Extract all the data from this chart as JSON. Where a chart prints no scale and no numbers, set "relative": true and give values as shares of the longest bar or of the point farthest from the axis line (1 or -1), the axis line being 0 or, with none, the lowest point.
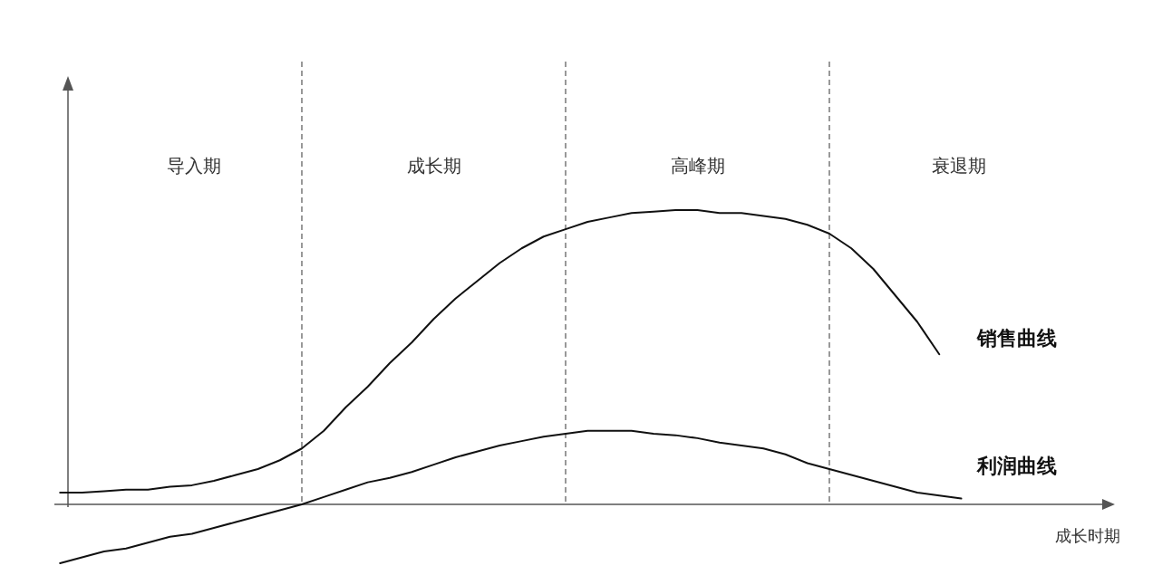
{
  "chart_data": {
    "type": "line",
    "relative": true,
    "grid": "x",
    "marker": "none",
    "line_style": "solid",
    "categories": [
      null,
      null,
      null,
      null,
      null,
      null,
      null,
      null,
      null,
      null,
      null,
      null,
      null,
      null,
      null,
      null,
      null,
      null,
      null,
      null,
      null,
      null,
      null,
      null,
      null,
      null,
      null,
      null,
      null,
      null,
      null,
      null,
      null,
      null,
      null,
      null,
      null,
      null,
      null,
      null,
      null,
      null
    ],
    "series": [
      {
        "name": "销售曲线",
        "color": "#111111",
        "values": [
          0.04,
          0.04,
          0.045,
          0.05,
          0.05,
          0.06,
          0.065,
          0.08,
          0.1,
          0.12,
          0.15,
          0.19,
          0.25,
          0.33,
          0.4,
          0.48,
          0.55,
          0.63,
          0.7,
          0.76,
          0.82,
          0.87,
          0.91,
          0.935,
          0.96,
          0.975,
          0.99,
          0.995,
          1.0,
          1.0,
          0.99,
          0.99,
          0.98,
          0.97,
          0.95,
          0.92,
          0.87,
          0.8,
          0.71,
          0.62,
          0.51,
          null
        ]
      },
      {
        "name": "利润曲线",
        "color": "#111111",
        "values": [
          -0.2,
          -0.18,
          -0.16,
          -0.15,
          -0.13,
          -0.11,
          -0.1,
          -0.08,
          -0.06,
          -0.04,
          -0.02,
          0,
          0.025,
          0.05,
          0.075,
          0.09,
          0.11,
          0.135,
          0.16,
          0.18,
          0.2,
          0.215,
          0.23,
          0.24,
          0.25,
          0.25,
          0.25,
          0.24,
          0.235,
          0.225,
          0.21,
          0.2,
          0.19,
          0.17,
          0.14,
          0.12,
          0.1,
          0.08,
          0.06,
          0.04,
          0.03,
          0.02
        ]
      }
    ],
    "annotations": [
      "导入期",
      "成长期",
      "高峰期",
      "衰退期",
      "成长时期"
    ]
  }
}
